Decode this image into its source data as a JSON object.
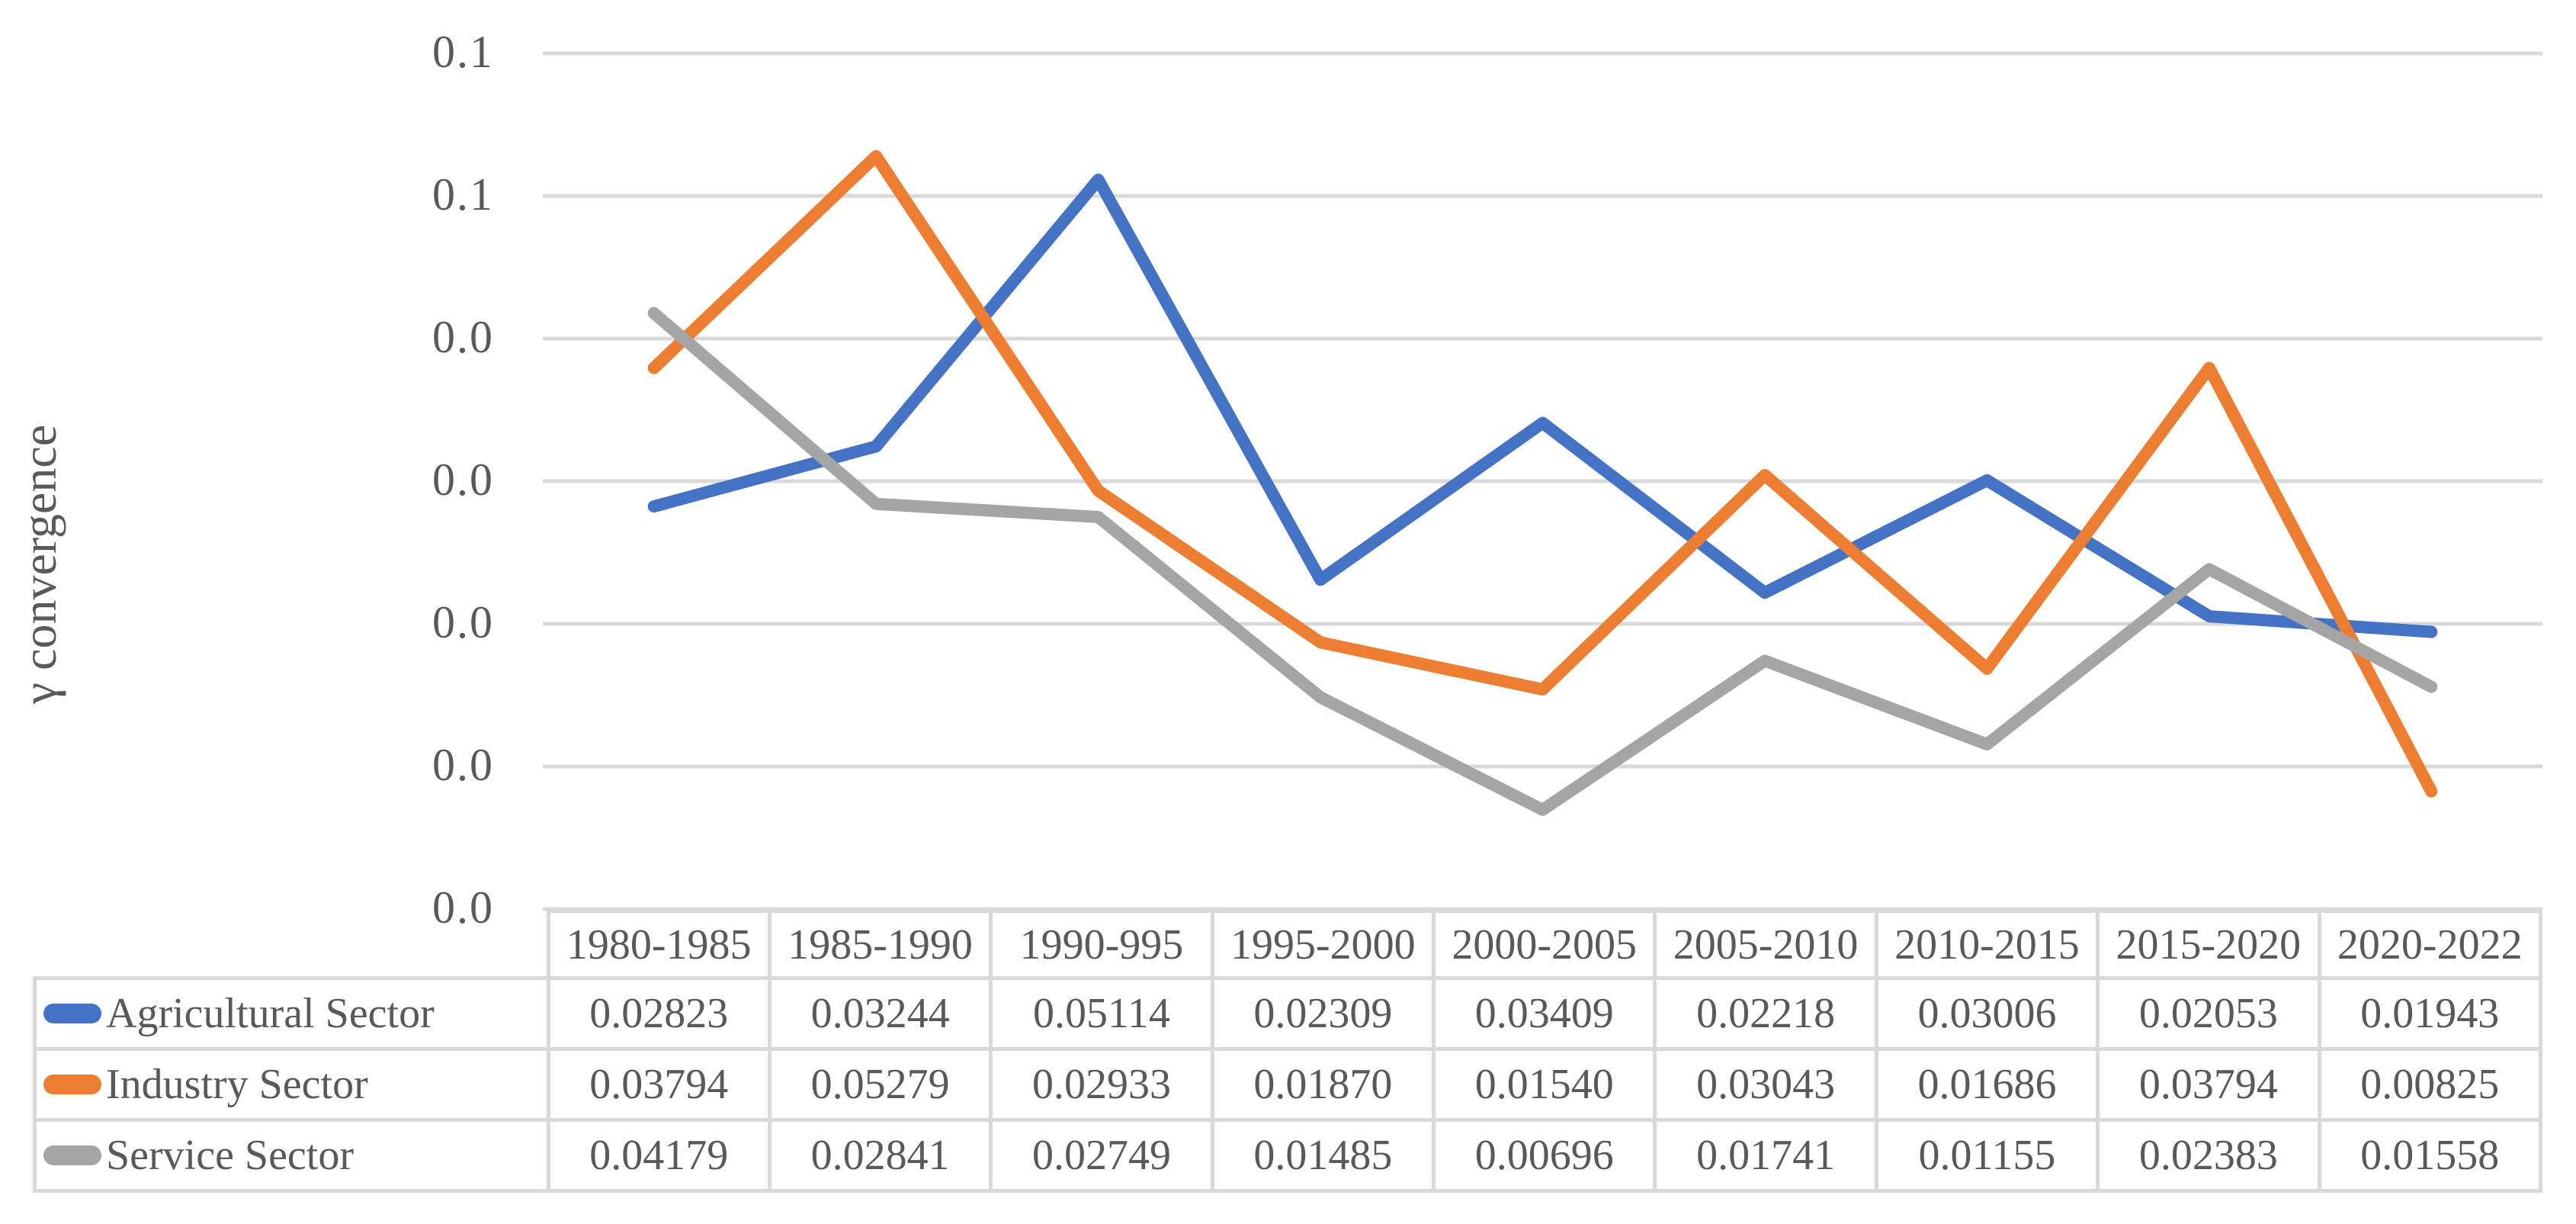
{
  "y_axis": {
    "title": "γ convergence",
    "tick_labels": [
      "0.1",
      "0.1",
      "0.0",
      "0.0",
      "0.0",
      "0.0",
      "0.0"
    ]
  },
  "chart_data": {
    "type": "line",
    "title": "",
    "xlabel": "",
    "ylabel": "γ convergence",
    "categories": [
      "1980-1985",
      "1985-1990",
      "1990-995",
      "1995-2000",
      "2000-2005",
      "2005-2010",
      "2010-2015",
      "2015-2020",
      "2020-2022"
    ],
    "series": [
      {
        "name": "Agricultural Sector",
        "color": "#4472C4",
        "values": [
          0.02823,
          0.03244,
          0.05114,
          0.02309,
          0.03409,
          0.02218,
          0.03006,
          0.02053,
          0.01943
        ]
      },
      {
        "name": "Industry Sector",
        "color": "#ED7D31",
        "values": [
          0.03794,
          0.05279,
          0.02933,
          0.0187,
          0.0154,
          0.03043,
          0.01686,
          0.03794,
          0.00825
        ]
      },
      {
        "name": "Service Sector",
        "color": "#A5A5A5",
        "values": [
          0.04179,
          0.02841,
          0.02749,
          0.01485,
          0.00696,
          0.01741,
          0.01155,
          0.02383,
          0.01558
        ]
      }
    ],
    "ylim": [
      0,
      0.06
    ],
    "y_tick_values": [
      0.06,
      0.05,
      0.04,
      0.03,
      0.02,
      0.01,
      0.0
    ],
    "gridlines": true,
    "grid_color": "#D9D9D9",
    "legend_position": "data-table-left"
  },
  "table": {
    "corner_label": "",
    "columns": [
      "1980-1985",
      "1985-1990",
      "1990-995",
      "1995-2000",
      "2000-2005",
      "2005-2010",
      "2010-2015",
      "2015-2020",
      "2020-2022"
    ],
    "rows": [
      {
        "label": "Agricultural Sector",
        "color": "#4472C4",
        "values": [
          "0.02823",
          "0.03244",
          "0.05114",
          "0.02309",
          "0.03409",
          "0.02218",
          "0.03006",
          "0.02053",
          "0.01943"
        ]
      },
      {
        "label": "Industry Sector",
        "color": "#ED7D31",
        "values": [
          "0.03794",
          "0.05279",
          "0.02933",
          "0.01870",
          "0.01540",
          "0.03043",
          "0.01686",
          "0.03794",
          "0.00825"
        ]
      },
      {
        "label": "Service Sector",
        "color": "#A5A5A5",
        "values": [
          "0.04179",
          "0.02841",
          "0.02749",
          "0.01485",
          "0.00696",
          "0.01741",
          "0.01155",
          "0.02383",
          "0.01558"
        ]
      }
    ]
  }
}
